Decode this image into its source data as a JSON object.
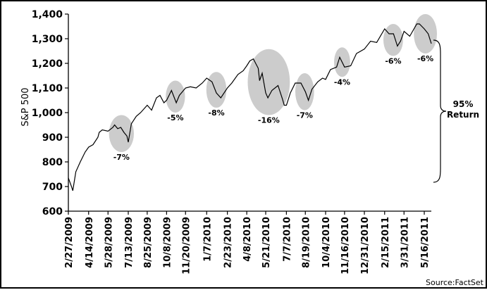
{
  "chart_data": {
    "type": "line",
    "title": "",
    "xlabel": "",
    "ylabel": "S&P 500",
    "ylim": [
      600,
      1400
    ],
    "yticks": [
      "1,400",
      "1,300",
      "1,200",
      "1,100",
      "1,000",
      "900",
      "800",
      "700",
      "600"
    ],
    "ytick_values": [
      1400,
      1300,
      1200,
      1100,
      1000,
      900,
      800,
      700,
      600
    ],
    "xticks": [
      "2/27/2009",
      "4/14/2009",
      "5/28/2009",
      "7/13/2009",
      "8/25/2009",
      "10/8/2009",
      "11/20/2009",
      "1/7/2010",
      "2/23/2010",
      "4/8/2010",
      "5/21/2010",
      "7/7/2010",
      "8/19/2010",
      "10/4/2010",
      "11/16/2010",
      "12/31/2010",
      "2/15/2011",
      "3/31/2011",
      "5/16/2011"
    ],
    "grid": false,
    "line_color": "#000000",
    "highlight_color": "#cccccc",
    "series": [
      {
        "x": [
          "2/27/2009",
          "3/6/2009",
          "3/9/2009",
          "3/16/2009",
          "3/26/2009",
          "4/6/2009",
          "4/14/2009",
          "4/24/2009",
          "5/5/2009",
          "5/8/2009",
          "5/15/2009",
          "5/28/2009",
          "6/8/2009",
          "6/12/2009",
          "6/19/2009",
          "6/26/2009",
          "7/3/2009",
          "7/10/2009",
          "7/13/2009",
          "7/20/2009",
          "7/31/2009",
          "8/10/2009",
          "8/25/2009",
          "9/4/2009",
          "9/15/2009",
          "9/23/2009",
          "10/2/2009",
          "10/8/2009",
          "10/19/2009",
          "10/30/2009",
          "11/6/2009",
          "11/20/2009",
          "12/1/2009",
          "12/14/2009",
          "12/28/2009",
          "1/7/2010",
          "1/19/2010",
          "1/29/2010",
          "2/8/2010",
          "2/23/2010",
          "3/5/2010",
          "3/19/2010",
          "3/31/2010",
          "4/8/2010",
          "4/15/2010",
          "4/23/2010",
          "5/4/2010",
          "5/7/2010",
          "5/13/2010",
          "5/21/2010",
          "5/26/2010",
          "6/4/2010",
          "6/18/2010",
          "6/28/2010",
          "7/2/2010",
          "7/7/2010",
          "7/16/2010",
          "7/27/2010",
          "8/9/2010",
          "8/19/2010",
          "8/26/2010",
          "9/3/2010",
          "9/16/2010",
          "9/27/2010",
          "10/4/2010",
          "10/15/2010",
          "10/29/2010",
          "11/5/2010",
          "11/16/2010",
          "11/30/2010",
          "12/13/2010",
          "12/31/2010",
          "1/14/2011",
          "1/28/2011",
          "2/15/2011",
          "2/25/2011",
          "3/7/2011",
          "3/16/2011",
          "3/23/2011",
          "3/31/2011",
          "4/13/2011",
          "4/29/2011",
          "5/5/2011",
          "5/16/2011",
          "5/25/2011",
          "6/1/2011"
        ],
        "values": [
          735,
          700,
          683,
          760,
          800,
          840,
          860,
          870,
          900,
          920,
          930,
          925,
          940,
          950,
          935,
          940,
          920,
          905,
          880,
          955,
          985,
          1000,
          1030,
          1010,
          1060,
          1070,
          1040,
          1050,
          1090,
          1040,
          1070,
          1100,
          1105,
          1100,
          1120,
          1140,
          1125,
          1080,
          1060,
          1100,
          1120,
          1155,
          1170,
          1190,
          1210,
          1218,
          1180,
          1130,
          1160,
          1080,
          1060,
          1090,
          1110,
          1055,
          1030,
          1030,
          1080,
          1120,
          1120,
          1085,
          1050,
          1095,
          1125,
          1140,
          1135,
          1175,
          1185,
          1225,
          1185,
          1190,
          1240,
          1258,
          1290,
          1285,
          1340,
          1320,
          1320,
          1270,
          1290,
          1330,
          1310,
          1360,
          1360,
          1340,
          1320,
          1280
        ]
      }
    ],
    "highlights": [
      {
        "label": "-7%",
        "from": "6/12/2009",
        "to": "7/13/2009"
      },
      {
        "label": "-5%",
        "from": "10/19/2009",
        "to": "11/6/2009"
      },
      {
        "label": "-8%",
        "from": "1/19/2010",
        "to": "2/8/2010"
      },
      {
        "label": "-16%",
        "from": "4/23/2010",
        "to": "7/2/2010"
      },
      {
        "label": "-7%",
        "from": "8/9/2010",
        "to": "8/26/2010"
      },
      {
        "label": "-4%",
        "from": "11/5/2010",
        "to": "11/16/2010"
      },
      {
        "label": "-6%",
        "from": "2/25/2011",
        "to": "3/16/2011"
      },
      {
        "label": "-6%",
        "from": "5/5/2011",
        "to": "6/1/2011"
      }
    ],
    "annotation": {
      "line1": "95%",
      "line2": "Return"
    },
    "source": "Source:FactSet"
  }
}
